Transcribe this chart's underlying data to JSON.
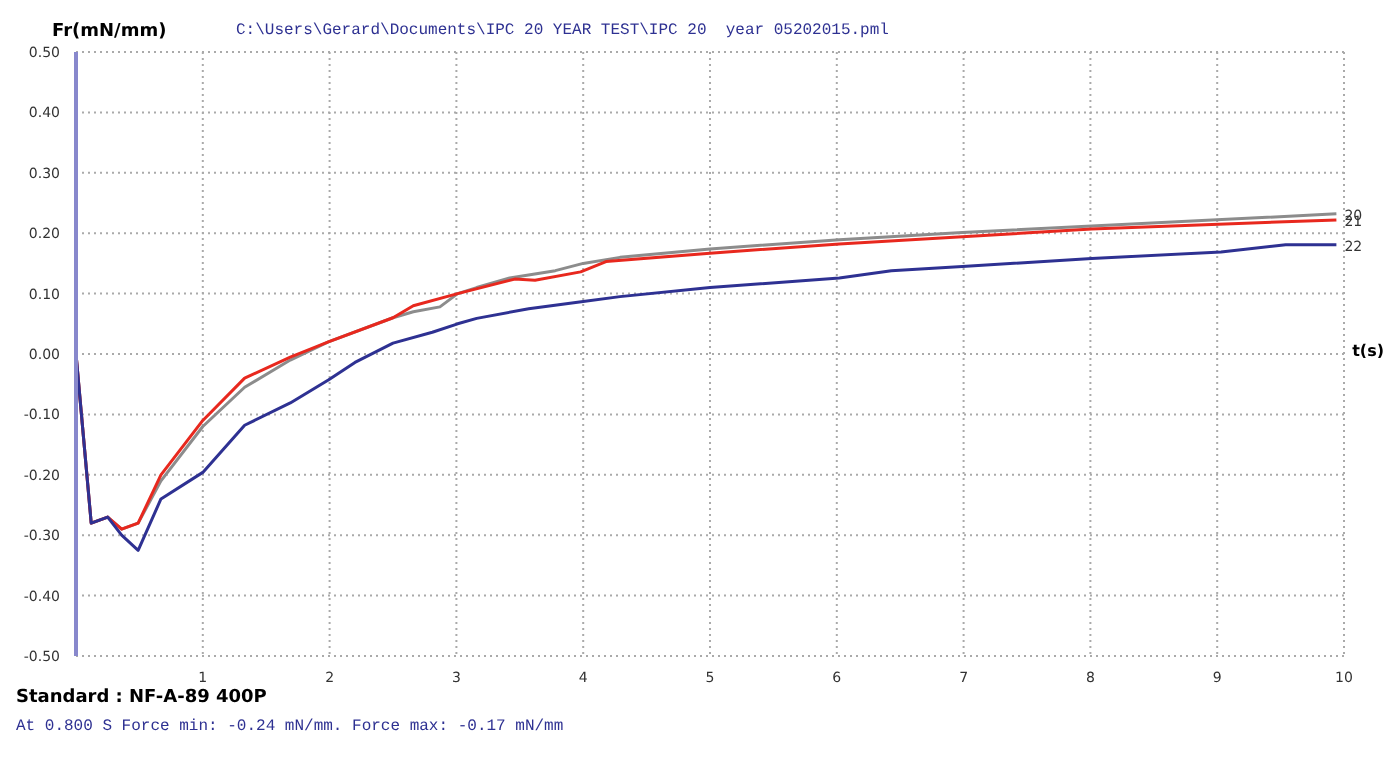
{
  "chart_data": {
    "type": "line",
    "title": "C:\\Users\\Gerard\\Documents\\IPC 20 YEAR TEST\\IPC 20  year 05202015.pml",
    "ylabel": "Fr(mN/mm)",
    "xlabel": "t(s)",
    "annotations": [
      "Standard : NF-A-89 400P",
      "At 0.800 S Force min: -0.24 mN/mm. Force max: -0.17 mN/mm"
    ],
    "xlim": [
      0,
      10
    ],
    "xticks": [
      1,
      2,
      3,
      4,
      5,
      6,
      7,
      8,
      9,
      10
    ],
    "ylim": [
      -0.5,
      0.5
    ],
    "yticks": [
      {
        "value": -0.5,
        "label": "-0.50"
      },
      {
        "value": -0.4,
        "label": "-0.40"
      },
      {
        "value": -0.3,
        "label": "-0.30"
      },
      {
        "value": -0.2,
        "label": "-0.20"
      },
      {
        "value": -0.1,
        "label": "-0.10"
      },
      {
        "value": 0,
        "label": "0.00"
      },
      {
        "value": 0.1,
        "label": "0.10"
      },
      {
        "value": 0.2,
        "label": "0.20"
      },
      {
        "value": 0.3,
        "label": "0.30"
      },
      {
        "value": 0.4,
        "label": "0.40"
      },
      {
        "value": 0.5,
        "label": "0.50"
      }
    ],
    "grid": true,
    "line_style": "solid",
    "marker": "none",
    "series": [
      {
        "name": "20",
        "color": "#8c8c8c",
        "x": [
          0,
          0.12,
          0.25,
          0.36,
          0.49,
          0.67,
          1.0,
          1.33,
          1.69,
          1.99,
          2.5,
          2.66,
          2.87,
          3.01,
          3.16,
          3.42,
          3.78,
          4.0,
          4.29,
          5.0,
          6.02,
          6.99,
          8.01,
          9.94
        ],
        "values": [
          0,
          -0.28,
          -0.27,
          -0.29,
          -0.28,
          -0.21,
          -0.12,
          -0.055,
          -0.01,
          0.02,
          0.06,
          0.07,
          0.078,
          0.1,
          0.11,
          0.126,
          0.138,
          0.15,
          0.16,
          0.174,
          0.189,
          0.201,
          0.212,
          0.232
        ]
      },
      {
        "name": "21",
        "color": "#e8281e",
        "x": [
          0,
          0.12,
          0.25,
          0.36,
          0.49,
          0.67,
          1.0,
          1.33,
          1.69,
          1.99,
          2.5,
          2.66,
          3.01,
          3.46,
          3.62,
          3.98,
          4.18,
          5.0,
          6.02,
          6.99,
          8.01,
          9.94
        ],
        "values": [
          0,
          -0.28,
          -0.27,
          -0.29,
          -0.28,
          -0.2,
          -0.11,
          -0.04,
          -0.005,
          0.02,
          0.06,
          0.08,
          0.1,
          0.124,
          0.122,
          0.136,
          0.153,
          0.167,
          0.182,
          0.194,
          0.207,
          0.222
        ]
      },
      {
        "name": "22",
        "color": "#2e3192",
        "x": [
          0,
          0.12,
          0.25,
          0.36,
          0.49,
          0.67,
          1.0,
          1.33,
          1.69,
          1.99,
          2.2,
          2.5,
          2.81,
          3.01,
          3.16,
          3.57,
          4.0,
          4.29,
          5.0,
          6.02,
          6.43,
          6.99,
          8.01,
          9.03,
          9.54,
          9.94
        ],
        "values": [
          0,
          -0.28,
          -0.27,
          -0.3,
          -0.325,
          -0.24,
          -0.196,
          -0.118,
          -0.081,
          -0.043,
          -0.014,
          0.018,
          0.036,
          0.05,
          0.059,
          0.075,
          0.087,
          0.095,
          0.11,
          0.126,
          0.138,
          0.145,
          0.158,
          0.169,
          0.181,
          0.181
        ]
      }
    ]
  }
}
